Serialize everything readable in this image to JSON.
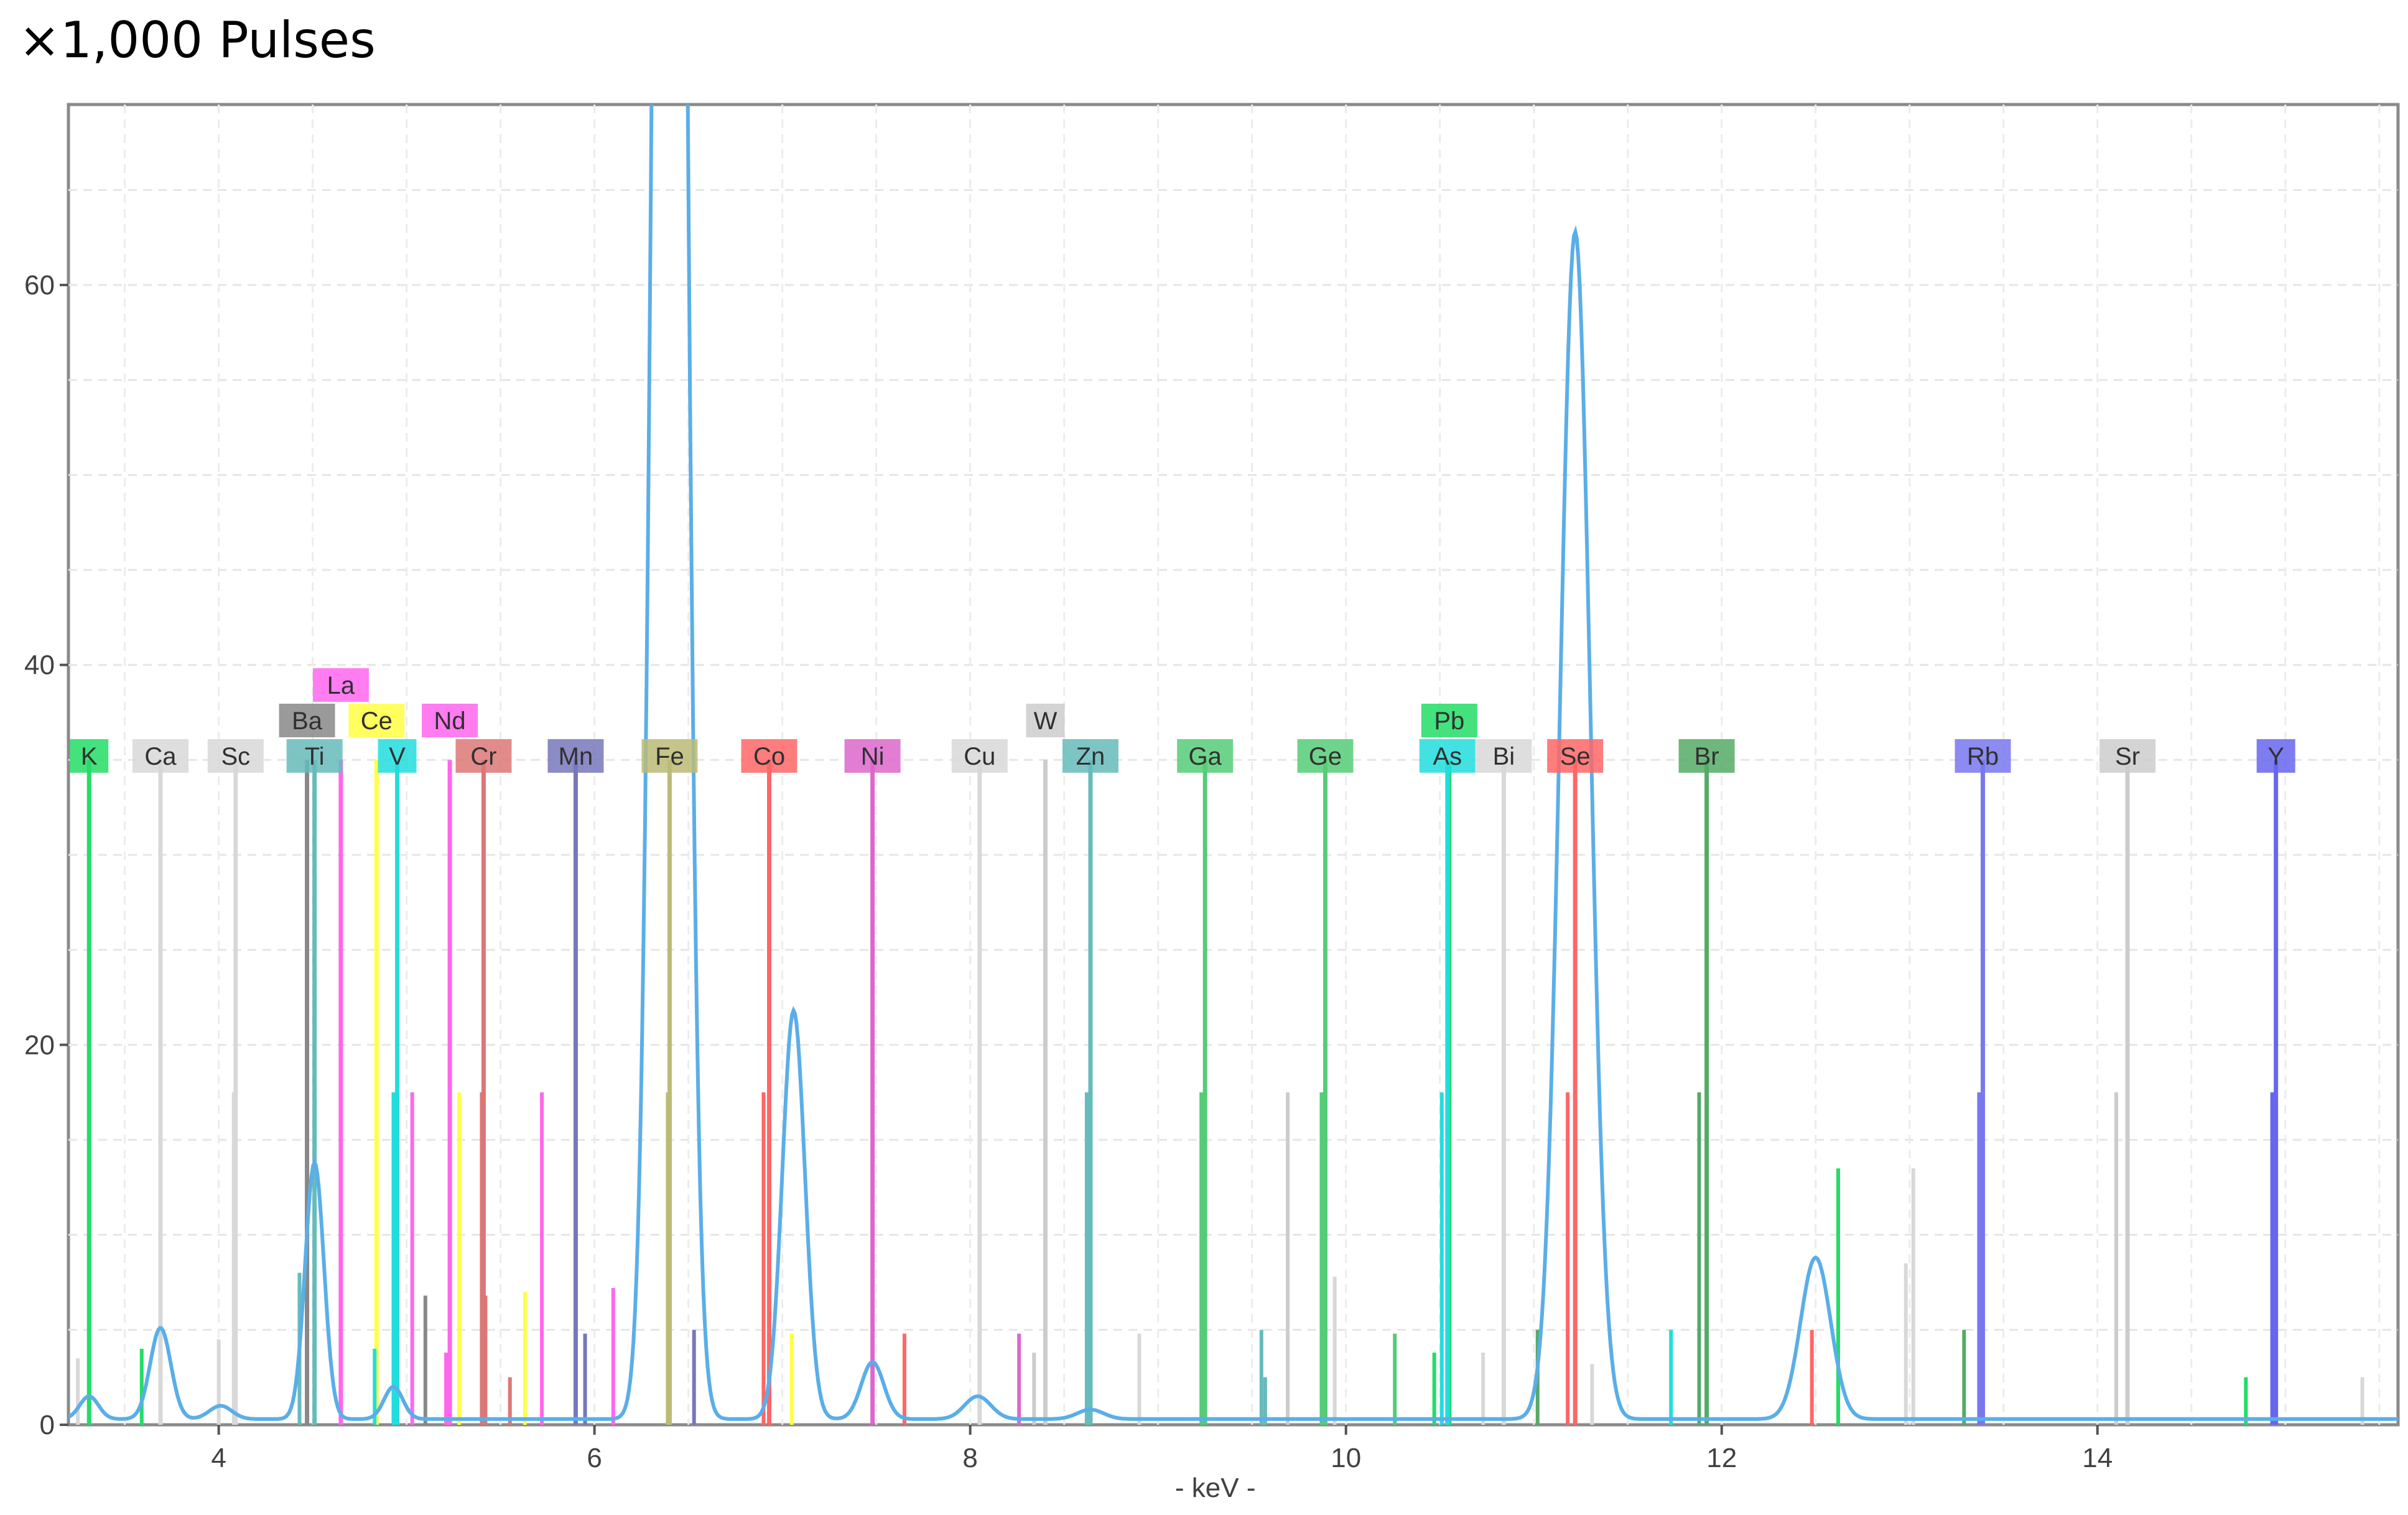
{
  "header": {
    "title": "×1,000 Pulses"
  },
  "chart_data": {
    "type": "line",
    "xlabel": "- keV -",
    "ylabel": "",
    "xlim": [
      3.2,
      15.6
    ],
    "ylim": [
      0,
      69.5
    ],
    "xticks": [
      4,
      6,
      8,
      10,
      12,
      14
    ],
    "yticks": [
      0,
      20,
      40,
      60
    ],
    "grid": true,
    "spectrum": {
      "color": "#5aaee8",
      "baseline": 0.3,
      "peaks": [
        {
          "center": 3.31,
          "height": 1.2,
          "width": 0.05
        },
        {
          "center": 3.69,
          "height": 4.8,
          "width": 0.055
        },
        {
          "center": 4.01,
          "height": 0.7,
          "width": 0.06
        },
        {
          "center": 4.51,
          "height": 13.5,
          "width": 0.05
        },
        {
          "center": 4.93,
          "height": 1.7,
          "width": 0.05
        },
        {
          "center": 6.4,
          "height": 180,
          "width": 0.07
        },
        {
          "center": 7.06,
          "height": 21.5,
          "width": 0.06
        },
        {
          "center": 7.48,
          "height": 3.0,
          "width": 0.06
        },
        {
          "center": 8.04,
          "height": 1.2,
          "width": 0.07
        },
        {
          "center": 8.64,
          "height": 0.5,
          "width": 0.07
        },
        {
          "center": 11.22,
          "height": 62.5,
          "width": 0.08
        },
        {
          "center": 12.5,
          "height": 8.5,
          "width": 0.08
        }
      ]
    },
    "elements": [
      {
        "symbol": "K",
        "x": 3.31,
        "row": 0,
        "color": "#22dd66"
      },
      {
        "symbol": "Ca",
        "x": 3.69,
        "row": 0,
        "color": "#d8d8d8"
      },
      {
        "symbol": "Sc",
        "x": 4.09,
        "row": 0,
        "color": "#d8d8d8"
      },
      {
        "symbol": "Ba",
        "x": 4.47,
        "row": 1,
        "color": "#888888"
      },
      {
        "symbol": "Ti",
        "x": 4.51,
        "row": 0,
        "color": "#66bbbb"
      },
      {
        "symbol": "La",
        "x": 4.65,
        "row": 2,
        "color": "#ff66ee"
      },
      {
        "symbol": "Ce",
        "x": 4.84,
        "row": 1,
        "color": "#ffff44"
      },
      {
        "symbol": "V",
        "x": 4.95,
        "row": 0,
        "color": "#22dddd"
      },
      {
        "symbol": "Nd",
        "x": 5.23,
        "row": 1,
        "color": "#ff66ee"
      },
      {
        "symbol": "Cr",
        "x": 5.41,
        "row": 0,
        "color": "#dd7777"
      },
      {
        "symbol": "Mn",
        "x": 5.9,
        "row": 0,
        "color": "#7777bb"
      },
      {
        "symbol": "Fe",
        "x": 6.4,
        "row": 0,
        "color": "#bbbb77"
      },
      {
        "symbol": "Co",
        "x": 6.93,
        "row": 0,
        "color": "#ff6666"
      },
      {
        "symbol": "Ni",
        "x": 7.48,
        "row": 0,
        "color": "#dd66cc"
      },
      {
        "symbol": "Cu",
        "x": 8.05,
        "row": 0,
        "color": "#d8d8d8"
      },
      {
        "symbol": "W",
        "x": 8.4,
        "row": 1,
        "color": "#cccccc"
      },
      {
        "symbol": "Zn",
        "x": 8.64,
        "row": 0,
        "color": "#66bbbb"
      },
      {
        "symbol": "Ga",
        "x": 9.25,
        "row": 0,
        "color": "#55cc77"
      },
      {
        "symbol": "Ge",
        "x": 9.89,
        "row": 0,
        "color": "#55cc77"
      },
      {
        "symbol": "Pb",
        "x": 10.55,
        "row": 1,
        "color": "#22dd66"
      },
      {
        "symbol": "As",
        "x": 10.54,
        "row": 0,
        "color": "#22dddd"
      },
      {
        "symbol": "Bi",
        "x": 10.84,
        "row": 0,
        "color": "#d8d8d8"
      },
      {
        "symbol": "Se",
        "x": 11.22,
        "row": 0,
        "color": "#ff6666"
      },
      {
        "symbol": "Br",
        "x": 11.92,
        "row": 0,
        "color": "#55aa66"
      },
      {
        "symbol": "Rb",
        "x": 13.39,
        "row": 0,
        "color": "#7777ee"
      },
      {
        "symbol": "Sr",
        "x": 14.16,
        "row": 0,
        "color": "#cccccc"
      },
      {
        "symbol": "Y",
        "x": 14.95,
        "row": 0,
        "color": "#6666ee"
      }
    ],
    "extra_lines": [
      {
        "x": 3.25,
        "y": 3.5,
        "color": "#d8d8d8"
      },
      {
        "x": 3.59,
        "y": 4.0,
        "color": "#22dd66"
      },
      {
        "x": 4.08,
        "y": 17.5,
        "color": "#d8d8d8"
      },
      {
        "x": 4.0,
        "y": 4.5,
        "color": "#d8d8d8"
      },
      {
        "x": 4.43,
        "y": 8.0,
        "color": "#66bbbb"
      },
      {
        "x": 4.83,
        "y": 4.0,
        "color": "#22dddd"
      },
      {
        "x": 4.93,
        "y": 17.5,
        "color": "#22dddd"
      },
      {
        "x": 5.03,
        "y": 17.5,
        "color": "#ff66ee"
      },
      {
        "x": 5.1,
        "y": 6.8,
        "color": "#888888"
      },
      {
        "x": 5.21,
        "y": 3.8,
        "color": "#ff66ee"
      },
      {
        "x": 5.28,
        "y": 17.5,
        "color": "#ffff44"
      },
      {
        "x": 5.4,
        "y": 17.5,
        "color": "#dd7777"
      },
      {
        "x": 5.42,
        "y": 6.8,
        "color": "#dd7777"
      },
      {
        "x": 5.55,
        "y": 2.5,
        "color": "#dd7777"
      },
      {
        "x": 5.63,
        "y": 7.0,
        "color": "#ffff44"
      },
      {
        "x": 5.72,
        "y": 17.5,
        "color": "#ff66ee"
      },
      {
        "x": 5.9,
        "y": 17.5,
        "color": "#7777bb"
      },
      {
        "x": 5.95,
        "y": 4.8,
        "color": "#7777bb"
      },
      {
        "x": 6.1,
        "y": 7.2,
        "color": "#ff66ee"
      },
      {
        "x": 6.39,
        "y": 17.5,
        "color": "#bbbb77"
      },
      {
        "x": 6.53,
        "y": 5.0,
        "color": "#7777bb"
      },
      {
        "x": 6.9,
        "y": 17.5,
        "color": "#ff6666"
      },
      {
        "x": 7.05,
        "y": 4.8,
        "color": "#ffff44"
      },
      {
        "x": 7.48,
        "y": 17.5,
        "color": "#dd66cc"
      },
      {
        "x": 7.65,
        "y": 4.8,
        "color": "#ff6666"
      },
      {
        "x": 8.05,
        "y": 17.5,
        "color": "#d8d8d8"
      },
      {
        "x": 8.26,
        "y": 4.8,
        "color": "#dd66cc"
      },
      {
        "x": 8.34,
        "y": 3.8,
        "color": "#cccccc"
      },
      {
        "x": 8.62,
        "y": 17.5,
        "color": "#66bbbb"
      },
      {
        "x": 8.9,
        "y": 4.8,
        "color": "#d8d8d8"
      },
      {
        "x": 9.23,
        "y": 17.5,
        "color": "#55cc77"
      },
      {
        "x": 9.25,
        "y": 17.5,
        "color": "#55cc77"
      },
      {
        "x": 9.55,
        "y": 5.0,
        "color": "#66bbbb"
      },
      {
        "x": 9.57,
        "y": 2.5,
        "color": "#66bbbb"
      },
      {
        "x": 9.69,
        "y": 17.5,
        "color": "#cccccc"
      },
      {
        "x": 9.87,
        "y": 17.5,
        "color": "#55cc77"
      },
      {
        "x": 9.94,
        "y": 7.8,
        "color": "#d8d8d8"
      },
      {
        "x": 10.26,
        "y": 4.8,
        "color": "#55cc77"
      },
      {
        "x": 10.47,
        "y": 3.8,
        "color": "#22dd66"
      },
      {
        "x": 10.51,
        "y": 17.5,
        "color": "#22dddd"
      },
      {
        "x": 10.73,
        "y": 3.8,
        "color": "#d8d8d8"
      },
      {
        "x": 11.02,
        "y": 5.0,
        "color": "#55aa66"
      },
      {
        "x": 11.18,
        "y": 17.5,
        "color": "#ff6666"
      },
      {
        "x": 11.31,
        "y": 3.2,
        "color": "#d8d8d8"
      },
      {
        "x": 11.73,
        "y": 5.0,
        "color": "#22dddd"
      },
      {
        "x": 11.88,
        "y": 17.5,
        "color": "#55aa66"
      },
      {
        "x": 12.48,
        "y": 5.0,
        "color": "#ff6666"
      },
      {
        "x": 12.62,
        "y": 13.5,
        "color": "#22dd66"
      },
      {
        "x": 12.98,
        "y": 8.5,
        "color": "#d8d8d8"
      },
      {
        "x": 13.02,
        "y": 13.5,
        "color": "#d8d8d8"
      },
      {
        "x": 13.29,
        "y": 5.0,
        "color": "#55aa66"
      },
      {
        "x": 13.37,
        "y": 17.5,
        "color": "#7777ee"
      },
      {
        "x": 14.1,
        "y": 17.5,
        "color": "#cccccc"
      },
      {
        "x": 14.79,
        "y": 2.5,
        "color": "#22dd66"
      },
      {
        "x": 14.93,
        "y": 17.5,
        "color": "#6666ee"
      },
      {
        "x": 15.41,
        "y": 2.5,
        "color": "#d8d8d8"
      }
    ]
  }
}
